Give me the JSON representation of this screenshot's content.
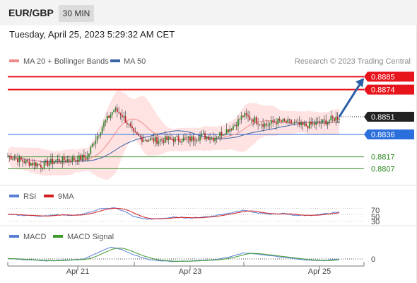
{
  "header": {
    "pair": "EUR/GBP",
    "timeframe": "30 MIN"
  },
  "datetime": "Tuesday, April 25, 2023 5:29:32 AM CET",
  "legend": {
    "ma20": "MA 20 + Bollinger Bands",
    "ma50": "MA 50",
    "credit": "Research © 2023 Trading Central"
  },
  "colors": {
    "resistance": "#e8141c",
    "support_blue": "#2a6fdb",
    "support_green": "#2e8b22",
    "candle_up": "#2d8a2d",
    "candle_down": "#c0262a",
    "bb": "#ffd6d6",
    "ma20": "#f08a8a",
    "ma50": "#3a63a6",
    "rsi": "#5b7fd6",
    "rsi_ma": "#d22020",
    "macd": "#5b7fd6",
    "macd_signal": "#3c9a2a",
    "arrow": "#2a5ea8"
  },
  "chart_data": [
    {
      "type": "candlestick",
      "title": "EUR/GBP",
      "ylim": [
        0.8797,
        0.8893
      ],
      "x_ticks": [
        "Apr 21",
        "Apr 23",
        "Apr 25"
      ],
      "last_price": 0.8851,
      "levels": [
        {
          "label": "0.8885",
          "value": 0.8885,
          "kind": "resistance"
        },
        {
          "label": "0.8874",
          "value": 0.8874,
          "kind": "resistance"
        },
        {
          "label": "0.8851",
          "value": 0.8851,
          "kind": "last"
        },
        {
          "label": "0.8836",
          "value": 0.8836,
          "kind": "support_blue"
        },
        {
          "label": "0.8817",
          "value": 0.8817,
          "kind": "support_green"
        },
        {
          "label": "0.8807",
          "value": 0.8807,
          "kind": "support_green"
        }
      ],
      "series": [
        {
          "name": "MA 20 + Bollinger Bands"
        },
        {
          "name": "MA 50"
        }
      ],
      "close_keyframes": [
        [
          0,
          0.8818
        ],
        [
          10,
          0.8813
        ],
        [
          20,
          0.881
        ],
        [
          30,
          0.8814
        ],
        [
          40,
          0.8815
        ],
        [
          48,
          0.8817
        ],
        [
          52,
          0.883
        ],
        [
          58,
          0.8845
        ],
        [
          64,
          0.8857
        ],
        [
          68,
          0.8854
        ],
        [
          72,
          0.8846
        ],
        [
          76,
          0.8836
        ],
        [
          82,
          0.8832
        ],
        [
          90,
          0.8831
        ],
        [
          100,
          0.8832
        ],
        [
          110,
          0.8832
        ],
        [
          118,
          0.8835
        ],
        [
          124,
          0.8833
        ],
        [
          130,
          0.8838
        ],
        [
          136,
          0.8843
        ],
        [
          142,
          0.8852
        ],
        [
          148,
          0.8849
        ],
        [
          156,
          0.8844
        ],
        [
          162,
          0.8847
        ],
        [
          170,
          0.8846
        ],
        [
          178,
          0.8843
        ],
        [
          186,
          0.8845
        ],
        [
          194,
          0.8848
        ],
        [
          200,
          0.8851
        ]
      ],
      "forecast_target": 0.8885
    },
    {
      "type": "line",
      "title": "RSI",
      "series": [
        {
          "name": "RSI"
        },
        {
          "name": "9MA"
        }
      ],
      "y_ticks": [
        "70",
        "50",
        "30"
      ],
      "rsi_keyframes": [
        [
          0,
          52
        ],
        [
          10,
          48
        ],
        [
          20,
          46
        ],
        [
          30,
          50
        ],
        [
          40,
          48
        ],
        [
          48,
          55
        ],
        [
          56,
          68
        ],
        [
          64,
          72
        ],
        [
          70,
          62
        ],
        [
          76,
          44
        ],
        [
          84,
          36
        ],
        [
          92,
          38
        ],
        [
          100,
          42
        ],
        [
          112,
          40
        ],
        [
          124,
          46
        ],
        [
          136,
          58
        ],
        [
          142,
          64
        ],
        [
          150,
          56
        ],
        [
          158,
          52
        ],
        [
          166,
          54
        ],
        [
          174,
          48
        ],
        [
          182,
          48
        ],
        [
          190,
          52
        ],
        [
          200,
          58
        ]
      ]
    },
    {
      "type": "line",
      "title": "MACD",
      "series": [
        {
          "name": "MACD"
        },
        {
          "name": "MACD Signal"
        }
      ],
      "y_ticks": [
        "0"
      ],
      "macd_keyframes": [
        [
          0,
          0.1
        ],
        [
          12,
          -0.2
        ],
        [
          24,
          -0.4
        ],
        [
          36,
          -0.2
        ],
        [
          46,
          0.0
        ],
        [
          54,
          1.2
        ],
        [
          62,
          2.4
        ],
        [
          68,
          2.0
        ],
        [
          76,
          0.8
        ],
        [
          86,
          -0.2
        ],
        [
          98,
          -0.5
        ],
        [
          110,
          -0.4
        ],
        [
          124,
          -0.2
        ],
        [
          134,
          0.4
        ],
        [
          142,
          1.2
        ],
        [
          150,
          1.0
        ],
        [
          160,
          0.6
        ],
        [
          170,
          0.2
        ],
        [
          180,
          -0.2
        ],
        [
          190,
          -0.4
        ],
        [
          200,
          0.0
        ]
      ]
    }
  ]
}
